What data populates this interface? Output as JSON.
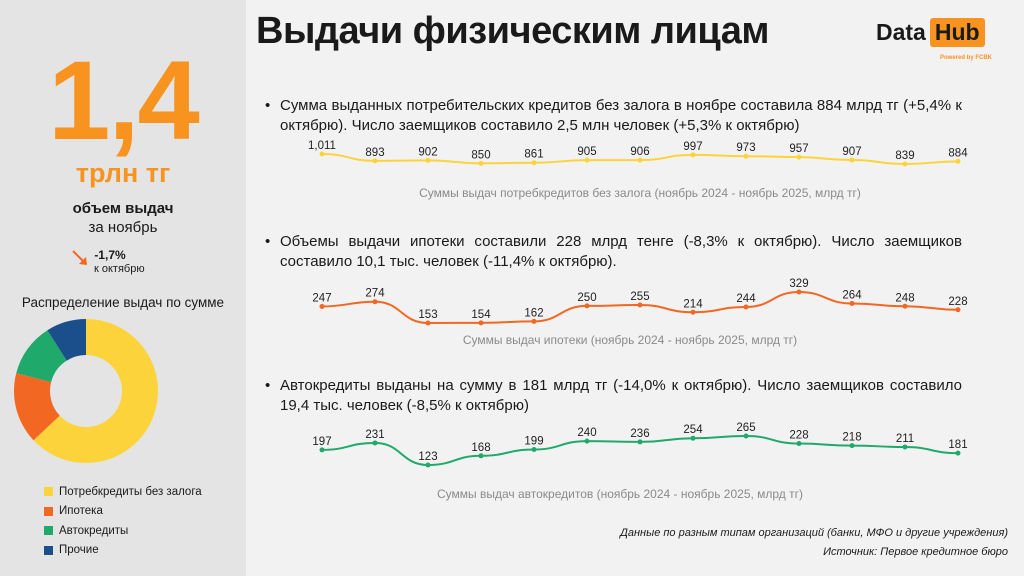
{
  "header": {
    "title": "Выдачи физическим лицам",
    "logo": {
      "text_left": "Data",
      "text_right": "Hub",
      "tagline": "Powered by FCBK"
    }
  },
  "summary": {
    "value": "1,4",
    "unit": "трлн тг",
    "label": "объем выдач",
    "period": "за ноябрь",
    "change": "-1,7%",
    "change_label": "к октябрю",
    "arrow_icon": "arrow-down-right-icon"
  },
  "distribution": {
    "title": "Распределение выдач по сумме",
    "segments": [
      {
        "label": "Потребкредиты без залога",
        "color": "#fdd33b",
        "share": 0.63
      },
      {
        "label": "Ипотека",
        "color": "#f26722",
        "share": 0.16
      },
      {
        "label": "Автокредиты",
        "color": "#1faa6b",
        "share": 0.12
      },
      {
        "label": "Прочие",
        "color": "#1b4f8c",
        "share": 0.09
      }
    ]
  },
  "sections": [
    {
      "text": "Сумма выданных потребительских кредитов без залога в ноябре составила 884 млрд тг (+5,4% к октябрю). Число заемщиков составило 2,5 млн человек (+5,3% к октябрю)",
      "caption": "Суммы выдач потребкредитов без залога (ноябрь 2024 - ноябрь 2025, млрд тг)"
    },
    {
      "text": "Объемы выдачи ипотеки составили 228 млрд тенге (-8,3% к октябрю). Число заемщиков составило 10,1 тыс. человек (-11,4% к октябрю).",
      "caption": "Суммы выдач ипотеки  (ноябрь 2024 - ноябрь 2025, млрд тг)"
    },
    {
      "text": "Автокредиты выданы на сумму в 181 млрд тг (-14,0% к октябрю). Число заемщиков составило 19,4 тыс. человек (-8,5% к октябрю)",
      "caption": "Суммы выдач автокредитов (ноябрь 2024 - ноябрь 2025, млрд тг)"
    }
  ],
  "chart_data": [
    {
      "type": "line",
      "color": "#fdd33b",
      "values": [
        1011,
        893,
        902,
        850,
        861,
        905,
        906,
        997,
        973,
        957,
        907,
        839,
        884
      ],
      "labels": [
        "1,011",
        "893",
        "902",
        "850",
        "861",
        "905",
        "906",
        "997",
        "973",
        "957",
        "907",
        "839",
        "884"
      ]
    },
    {
      "type": "line",
      "color": "#f26722",
      "values": [
        247,
        274,
        153,
        154,
        162,
        250,
        255,
        214,
        244,
        329,
        264,
        248,
        228
      ],
      "labels": [
        "247",
        "274",
        "153",
        "154",
        "162",
        "250",
        "255",
        "214",
        "244",
        "329",
        "264",
        "248",
        "228"
      ]
    },
    {
      "type": "line",
      "color": "#1faa6b",
      "values": [
        197,
        231,
        123,
        168,
        199,
        240,
        236,
        254,
        265,
        228,
        218,
        211,
        181
      ],
      "labels": [
        "197",
        "231",
        "123",
        "168",
        "199",
        "240",
        "236",
        "254",
        "265",
        "228",
        "218",
        "211",
        "181"
      ]
    }
  ],
  "footer": {
    "note": "Данные по разным типам организаций (банки, МФО и другие учреждения)",
    "source": "Источник: Первое кредитное бюро"
  }
}
